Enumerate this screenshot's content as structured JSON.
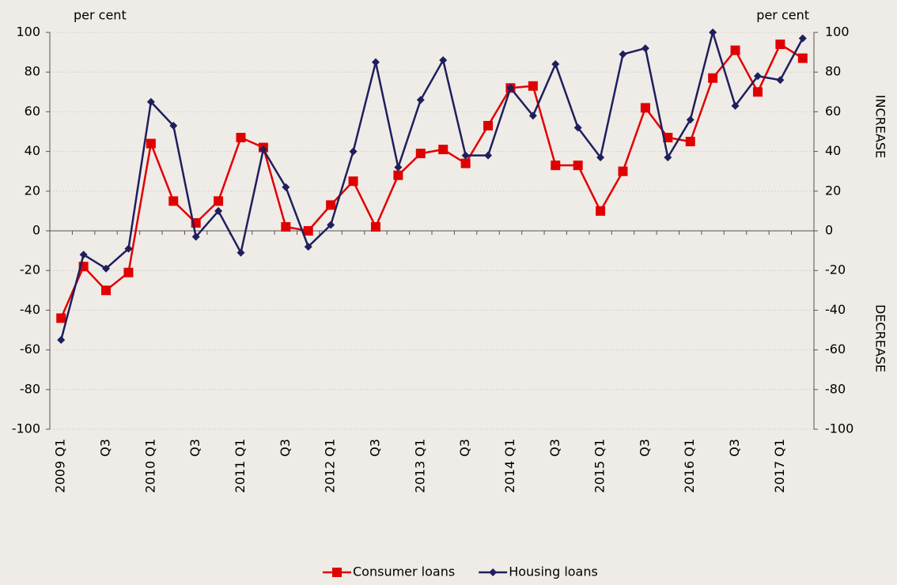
{
  "chart_data": {
    "type": "line",
    "y_label_left": "per cent",
    "y_label_right": "per cent",
    "annotation_top": "INCREASE",
    "annotation_bottom": "DECREASE",
    "categories": [
      "2009 Q1",
      null,
      "Q3",
      null,
      "2010 Q1",
      null,
      "Q3",
      null,
      "2011 Q1",
      null,
      "Q3",
      null,
      "2012 Q1",
      null,
      "Q3",
      null,
      "2013 Q1",
      null,
      "Q3",
      null,
      "2014 Q1",
      null,
      "Q3",
      null,
      "2015 Q1",
      null,
      "Q3",
      null,
      "2016 Q1",
      null,
      "Q3",
      null,
      "2017 Q1",
      null
    ],
    "series": [
      {
        "name": "Consumer loans",
        "color": "#e00000",
        "marker": "square",
        "values": [
          -44,
          -18,
          -30,
          -21,
          44,
          15,
          4,
          15,
          47,
          42,
          2,
          0,
          13,
          25,
          2,
          28,
          39,
          41,
          34,
          53,
          72,
          73,
          33,
          33,
          10,
          30,
          62,
          47,
          45,
          77,
          91,
          70,
          94,
          87
        ]
      },
      {
        "name": "Housing loans",
        "color": "#1f1f5c",
        "marker": "diamond",
        "values": [
          -55,
          -12,
          -19,
          -9,
          65,
          53,
          -3,
          10,
          -11,
          41,
          22,
          -8,
          3,
          40,
          85,
          32,
          66,
          86,
          38,
          38,
          72,
          58,
          84,
          52,
          37,
          89,
          92,
          37,
          56,
          100,
          63,
          78,
          76,
          97
        ]
      }
    ],
    "ylim": [
      -100,
      100
    ],
    "yticks": [
      -100,
      -80,
      -60,
      -40,
      -20,
      0,
      20,
      40,
      60,
      80,
      100
    ],
    "y2lim": [
      -100,
      100
    ],
    "y2ticks": [
      -100,
      -80,
      -60,
      -40,
      -20,
      0,
      20,
      40,
      60,
      80,
      100
    ],
    "grid": true,
    "legend": "bottom"
  }
}
